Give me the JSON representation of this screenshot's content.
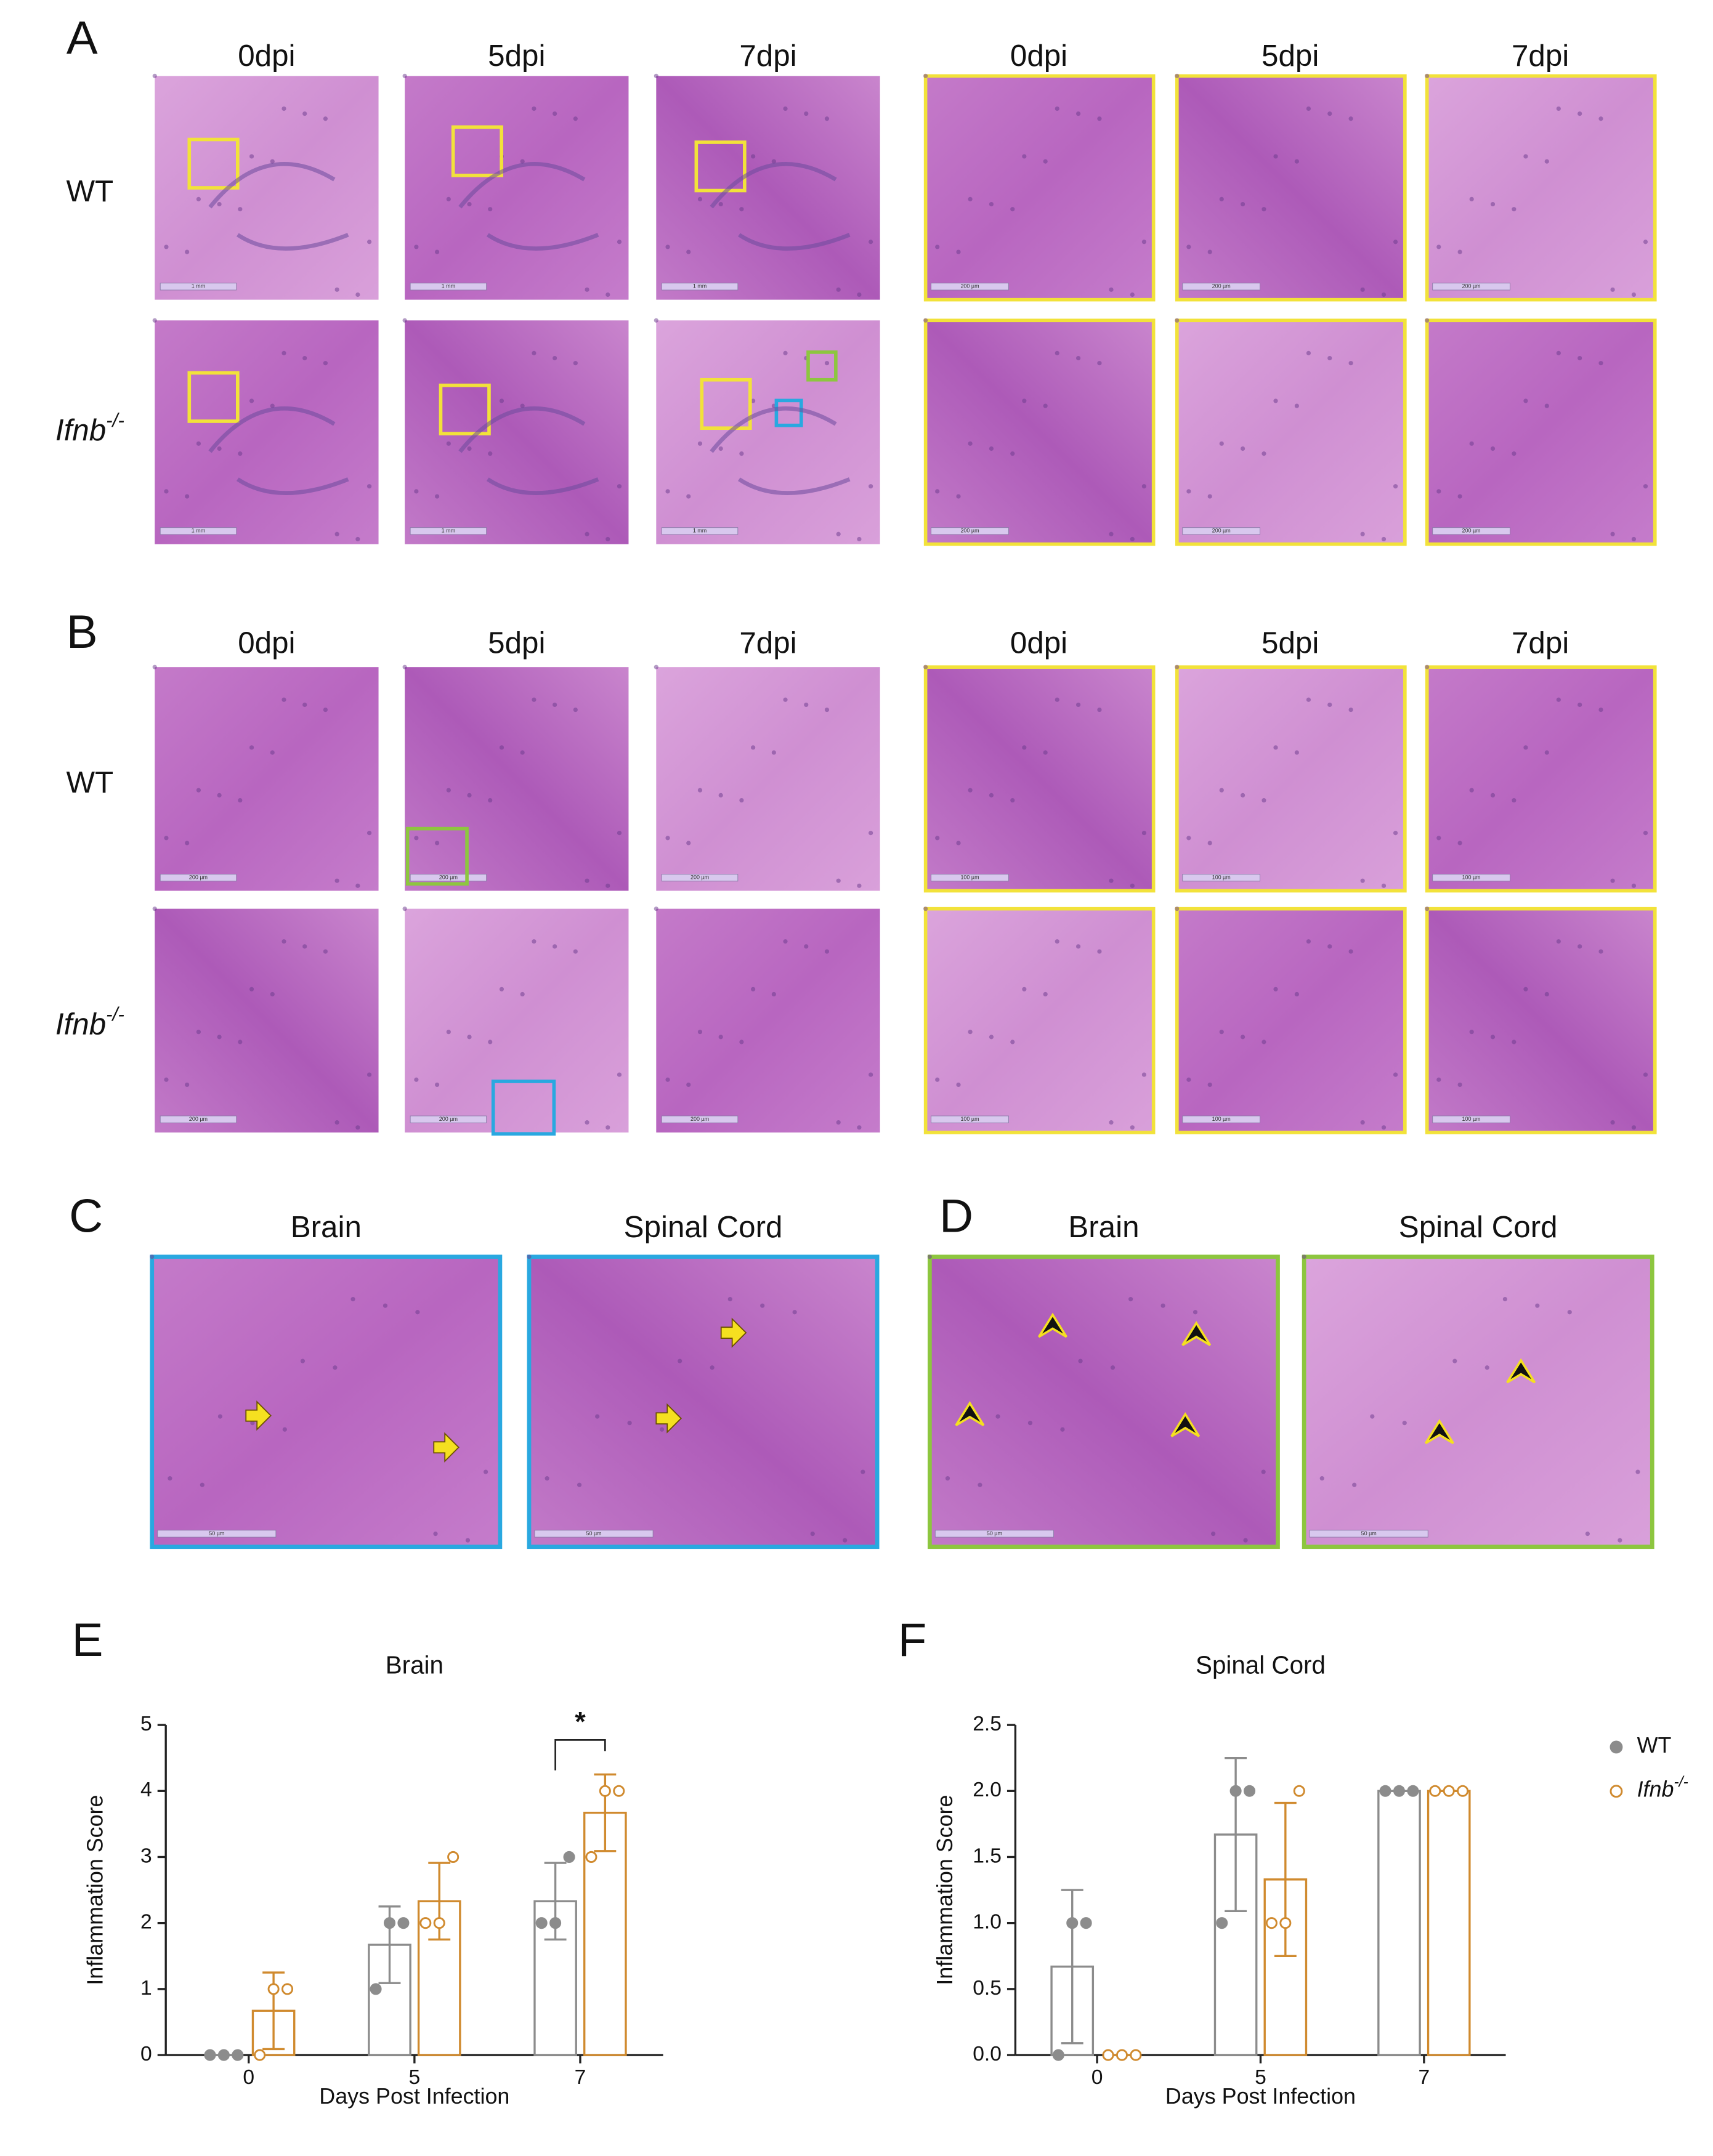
{
  "panels": [
    {
      "letter": "A",
      "overview_labels": [
        "0dpi",
        "5dpi",
        "7dpi"
      ],
      "zoom_labels": [
        "0dpi",
        "5dpi",
        "7dpi"
      ],
      "rows": [
        {
          "label": "WT"
        },
        {
          "label": "Ifnb",
          "superscript": "-/-"
        }
      ],
      "overview_scale_bar": "1 mm",
      "zoom_scale_bar": "200 µm"
    },
    {
      "letter": "B",
      "overview_labels": [
        "0dpi",
        "5dpi",
        "7dpi"
      ],
      "zoom_labels": [
        "0dpi",
        "5dpi",
        "7dpi"
      ],
      "rows": [
        {
          "label": "WT"
        },
        {
          "label": "Ifnb",
          "superscript": "-/-"
        }
      ],
      "overview_scale_bar": "200 µm",
      "zoom_scale_bar": "100 µm"
    },
    {
      "letter": "C",
      "image_labels": [
        "Brain",
        "Spinal Cord"
      ],
      "scale_bar": "50 µm"
    },
    {
      "letter": "D",
      "image_labels": [
        "Brain",
        "Spinal Cord"
      ],
      "scale_bar": "50 µm"
    }
  ],
  "chart_data": [
    {
      "type": "bar",
      "label": "E",
      "title": "Brain",
      "x_label": "Days Post Infection",
      "y_label": "Inflammation Score",
      "categories": [
        "0",
        "5",
        "7"
      ],
      "ylim": [
        0,
        5
      ],
      "yticks": [
        0,
        1,
        2,
        3,
        4,
        5
      ],
      "series": [
        {
          "color": "#8c8c8c",
          "marker": "filled",
          "values": [
            0,
            1.67,
            2.33
          ],
          "errors": [
            0,
            0.58,
            0.58
          ],
          "points": [
            [
              0,
              0,
              0
            ],
            [
              1,
              2,
              2
            ],
            [
              2,
              2,
              3
            ]
          ]
        },
        {
          "color": "#d08a2e",
          "marker": "open",
          "values": [
            0.67,
            2.33,
            3.67
          ],
          "errors": [
            0.58,
            0.58,
            0.58
          ],
          "points": [
            [
              0,
              1,
              1
            ],
            [
              2,
              2,
              3
            ],
            [
              3,
              4,
              4
            ]
          ]
        }
      ],
      "annotations": [
        {
          "text": "*",
          "category": "7"
        }
      ]
    },
    {
      "type": "bar",
      "label": "F",
      "title": "Spinal Cord",
      "x_label": "Days Post Infection",
      "y_label": "Inflammation Score",
      "categories": [
        "0",
        "5",
        "7"
      ],
      "ylim": [
        0,
        2.5
      ],
      "yticks": [
        {
          "value": 0,
          "label": "0.0"
        },
        {
          "value": 0.5,
          "label": "0.5"
        },
        {
          "value": 1,
          "label": "1.0"
        },
        {
          "value": 1.5,
          "label": "1.5"
        },
        {
          "value": 2,
          "label": "2.0"
        },
        2.5
      ],
      "legend": "right",
      "series": [
        {
          "name": "WT",
          "color": "#8c8c8c",
          "marker": "filled",
          "values": [
            0.67,
            1.67,
            2.0
          ],
          "errors": [
            0.58,
            0.58,
            0
          ],
          "points": [
            [
              0,
              1,
              1
            ],
            [
              1,
              2,
              2
            ],
            [
              2,
              2,
              2
            ]
          ]
        },
        {
          "name": "Ifnb",
          "name_superscript": "-/-",
          "color": "#d08a2e",
          "marker": "open",
          "values": [
            0,
            1.33,
            2.0
          ],
          "errors": [
            0,
            0.58,
            0
          ],
          "points": [
            [
              0,
              0,
              0
            ],
            [
              1,
              1,
              2
            ],
            [
              2,
              2,
              2
            ]
          ]
        }
      ]
    }
  ]
}
